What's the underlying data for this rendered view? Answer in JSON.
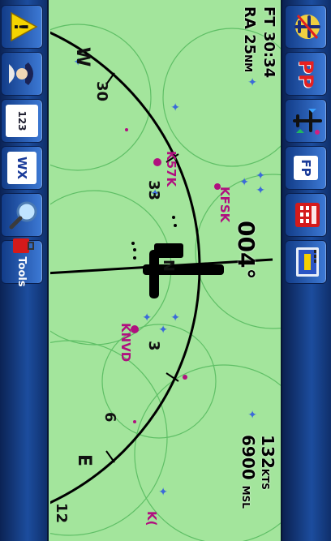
{
  "toolbar_top": {
    "buttons": [
      {
        "name": "route-airplane-icon"
      },
      {
        "name": "pp-button",
        "label": "PP"
      },
      {
        "name": "traffic-airplane-icon"
      },
      {
        "name": "flight-plan-button",
        "label": "FP"
      },
      {
        "name": "calculator-icon"
      },
      {
        "name": "panel-gauge-icon"
      }
    ]
  },
  "toolbar_bottom": {
    "buttons": [
      {
        "name": "alert-icon",
        "label": "!"
      },
      {
        "name": "pilot-icon"
      },
      {
        "name": "layers-button",
        "label": "123"
      },
      {
        "name": "weather-button",
        "label": "WX"
      },
      {
        "name": "search-icon"
      },
      {
        "name": "tools-button",
        "label": "Tools"
      }
    ]
  },
  "readouts": {
    "ft_label": "FT",
    "ft_value": "30:34",
    "ra_label": "RA",
    "ra_value": "25",
    "ra_unit": "NM",
    "track": "004°",
    "speed": "132",
    "speed_unit": "KTS",
    "altitude": "6900",
    "altitude_unit": "MSL"
  },
  "compass": {
    "n_label": "N",
    "w_label": "W",
    "e_label": "E",
    "tick_3": "3",
    "tick_6": "6",
    "tick_12": "12",
    "tick_30": "30",
    "tick_33": "33"
  },
  "airports": [
    {
      "id": "KNVD"
    },
    {
      "id": "K57K"
    },
    {
      "id": "KFSK"
    },
    {
      "id": "K("
    }
  ],
  "colors": {
    "map_bg": "#a3e59c",
    "magenta": "#b0107f",
    "range_circles": "#5fbf66"
  }
}
